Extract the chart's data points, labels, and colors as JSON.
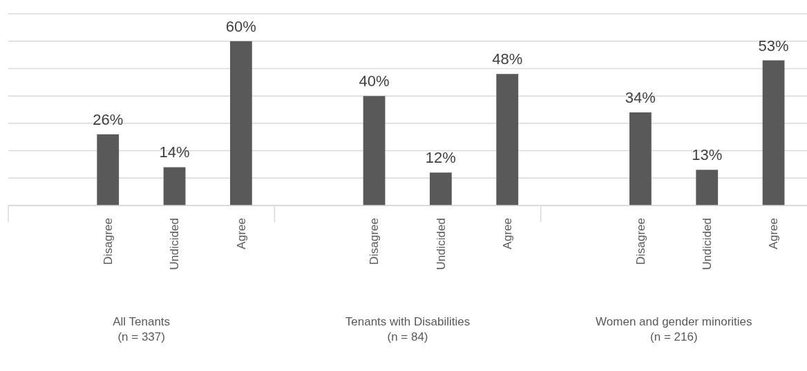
{
  "chart_data": {
    "type": "bar",
    "categories": [
      null,
      "Disagree",
      "Undicided",
      "Agree",
      null,
      "Disagree",
      "Undicided",
      "Agree",
      null,
      "Disagree",
      "Undicided",
      "Agree"
    ],
    "values": [
      null,
      26,
      14,
      60,
      null,
      40,
      12,
      48,
      null,
      34,
      13,
      53
    ],
    "value_labels": [
      null,
      "26%",
      "14%",
      "60%",
      null,
      "40%",
      "12%",
      "48%",
      null,
      "34%",
      "13%",
      "53%"
    ],
    "color": "#595959",
    "ylim": [
      0,
      70
    ],
    "yticks": [
      {
        "value": 0,
        "label": null
      },
      {
        "value": 10,
        "label": null
      },
      {
        "value": 20,
        "label": null
      },
      {
        "value": 30,
        "label": null
      },
      {
        "value": 40,
        "label": null
      },
      {
        "value": 50,
        "label": null
      },
      {
        "value": 60,
        "label": null
      },
      {
        "value": 70,
        "label": null
      }
    ],
    "tick_labels": "x",
    "grid": "y",
    "annotations": [
      "All Tenants\n(n = 337)",
      "Tenants with Disabilities\n(n = 84)",
      "Women and gender minorities\n(n = 216)"
    ]
  }
}
